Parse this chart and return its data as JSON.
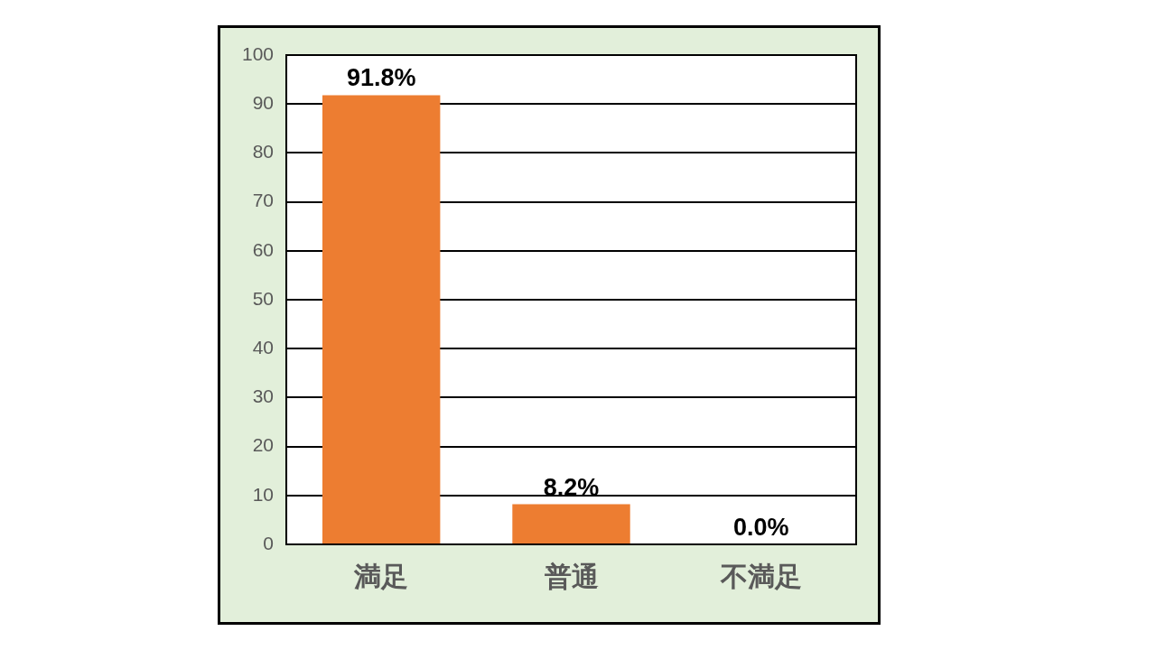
{
  "chart_data": {
    "type": "bar",
    "categories": [
      "満足",
      "普通",
      "不満足"
    ],
    "values": [
      91.8,
      8.2,
      0.0
    ],
    "value_labels": [
      "91.8%",
      "8.2%",
      "0.0%"
    ],
    "color": "#ed7d31",
    "ylim": [
      0,
      100
    ],
    "yticks": [
      0,
      10,
      20,
      30,
      40,
      50,
      60,
      70,
      80,
      90,
      100
    ],
    "grid": "y"
  }
}
